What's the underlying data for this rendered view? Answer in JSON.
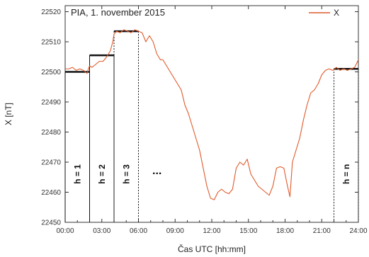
{
  "chart_data": {
    "type": "line",
    "title": "PIA, 1. november  2015",
    "xlabel": "Čas UTC [hh:mm]",
    "ylabel": "X [nT]",
    "xlim": [
      0,
      24
    ],
    "ylim": [
      22450,
      22522
    ],
    "x_ticks": [
      {
        "value": 0,
        "label": "00:00"
      },
      {
        "value": 3,
        "label": "03:00"
      },
      {
        "value": 6,
        "label": "06:00"
      },
      {
        "value": 9,
        "label": "09:00"
      },
      {
        "value": 12,
        "label": "12:00"
      },
      {
        "value": 15,
        "label": "15:00"
      },
      {
        "value": 18,
        "label": "18:00"
      },
      {
        "value": 21,
        "label": "21:00"
      },
      {
        "value": 24,
        "label": "24:00"
      }
    ],
    "y_ticks": [
      {
        "value": 22450,
        "label": "22450"
      },
      {
        "value": 22460,
        "label": "22460"
      },
      {
        "value": 22470,
        "label": "22470"
      },
      {
        "value": 22480,
        "label": "22480"
      },
      {
        "value": 22490,
        "label": "22490"
      },
      {
        "value": 22500,
        "label": "22500"
      },
      {
        "value": 22510,
        "label": "22510"
      },
      {
        "value": 22520,
        "label": "22520"
      }
    ],
    "legend": {
      "position": "top-right"
    },
    "series": [
      {
        "name": "X",
        "color": "#e05a2b",
        "x": [
          0,
          0.3,
          0.6,
          0.9,
          1.2,
          1.5,
          1.8,
          1.9,
          2.0,
          2.2,
          2.5,
          2.8,
          3.1,
          3.4,
          3.7,
          3.9,
          4.0,
          4.2,
          4.5,
          4.8,
          5.1,
          5.4,
          5.7,
          6.0,
          6.3,
          6.6,
          6.9,
          7.2,
          7.5,
          7.8,
          8.0,
          8.3,
          8.6,
          8.9,
          9.2,
          9.5,
          9.8,
          10.1,
          10.4,
          10.7,
          11.0,
          11.3,
          11.6,
          11.9,
          12.2,
          12.5,
          12.8,
          13.1,
          13.4,
          13.7,
          14.0,
          14.3,
          14.6,
          14.9,
          15.2,
          15.5,
          15.8,
          16.1,
          16.4,
          16.7,
          17.0,
          17.3,
          17.6,
          17.9,
          18.2,
          18.4,
          18.6,
          18.9,
          19.2,
          19.5,
          19.8,
          20.1,
          20.4,
          20.7,
          21.0,
          21.3,
          21.6,
          21.9,
          22.2,
          22.5,
          22.8,
          23.1,
          23.4,
          23.7,
          24.0
        ],
        "values": [
          22501,
          22501,
          22501.5,
          22500.5,
          22501,
          22500.5,
          22499.5,
          22501,
          22502,
          22501.5,
          22502.5,
          22503.5,
          22503.5,
          22505,
          22507,
          22510,
          22512.5,
          22513.5,
          22513,
          22514,
          22513.5,
          22513,
          22514,
          22513.5,
          22513,
          22510,
          22512,
          22510,
          22506,
          22504,
          22504,
          22502,
          22500,
          22498,
          22496,
          22494,
          22489,
          22486,
          22482,
          22478,
          22474,
          22468,
          22462,
          22458,
          22457.5,
          22460,
          22461,
          22460,
          22459.5,
          22461,
          22468,
          22470,
          22469,
          22471,
          22466,
          22464,
          22462,
          22461,
          22460,
          22459,
          22462,
          22468,
          22468.5,
          22468,
          22462,
          22458.5,
          22470,
          22474,
          22478,
          22484,
          22489,
          22493,
          22494,
          22496,
          22499,
          22500.5,
          22501,
          22500.5,
          22501.5,
          22500.5,
          22501,
          22500.5,
          22501,
          22501.5,
          22504
        ]
      }
    ],
    "annotations": {
      "windows": [
        {
          "label": "h = 1",
          "x_start": 0,
          "x_end": 2,
          "level": 22500
        },
        {
          "label": "h = 2",
          "x_start": 2,
          "x_end": 4,
          "level": 22505.5
        },
        {
          "label": "h = 3",
          "x_start": 4,
          "x_end": 6,
          "level": 22513.5
        },
        {
          "label": "h = n",
          "x_start": 22,
          "x_end": 24,
          "level": 22501
        }
      ],
      "ellipsis": "..."
    }
  }
}
